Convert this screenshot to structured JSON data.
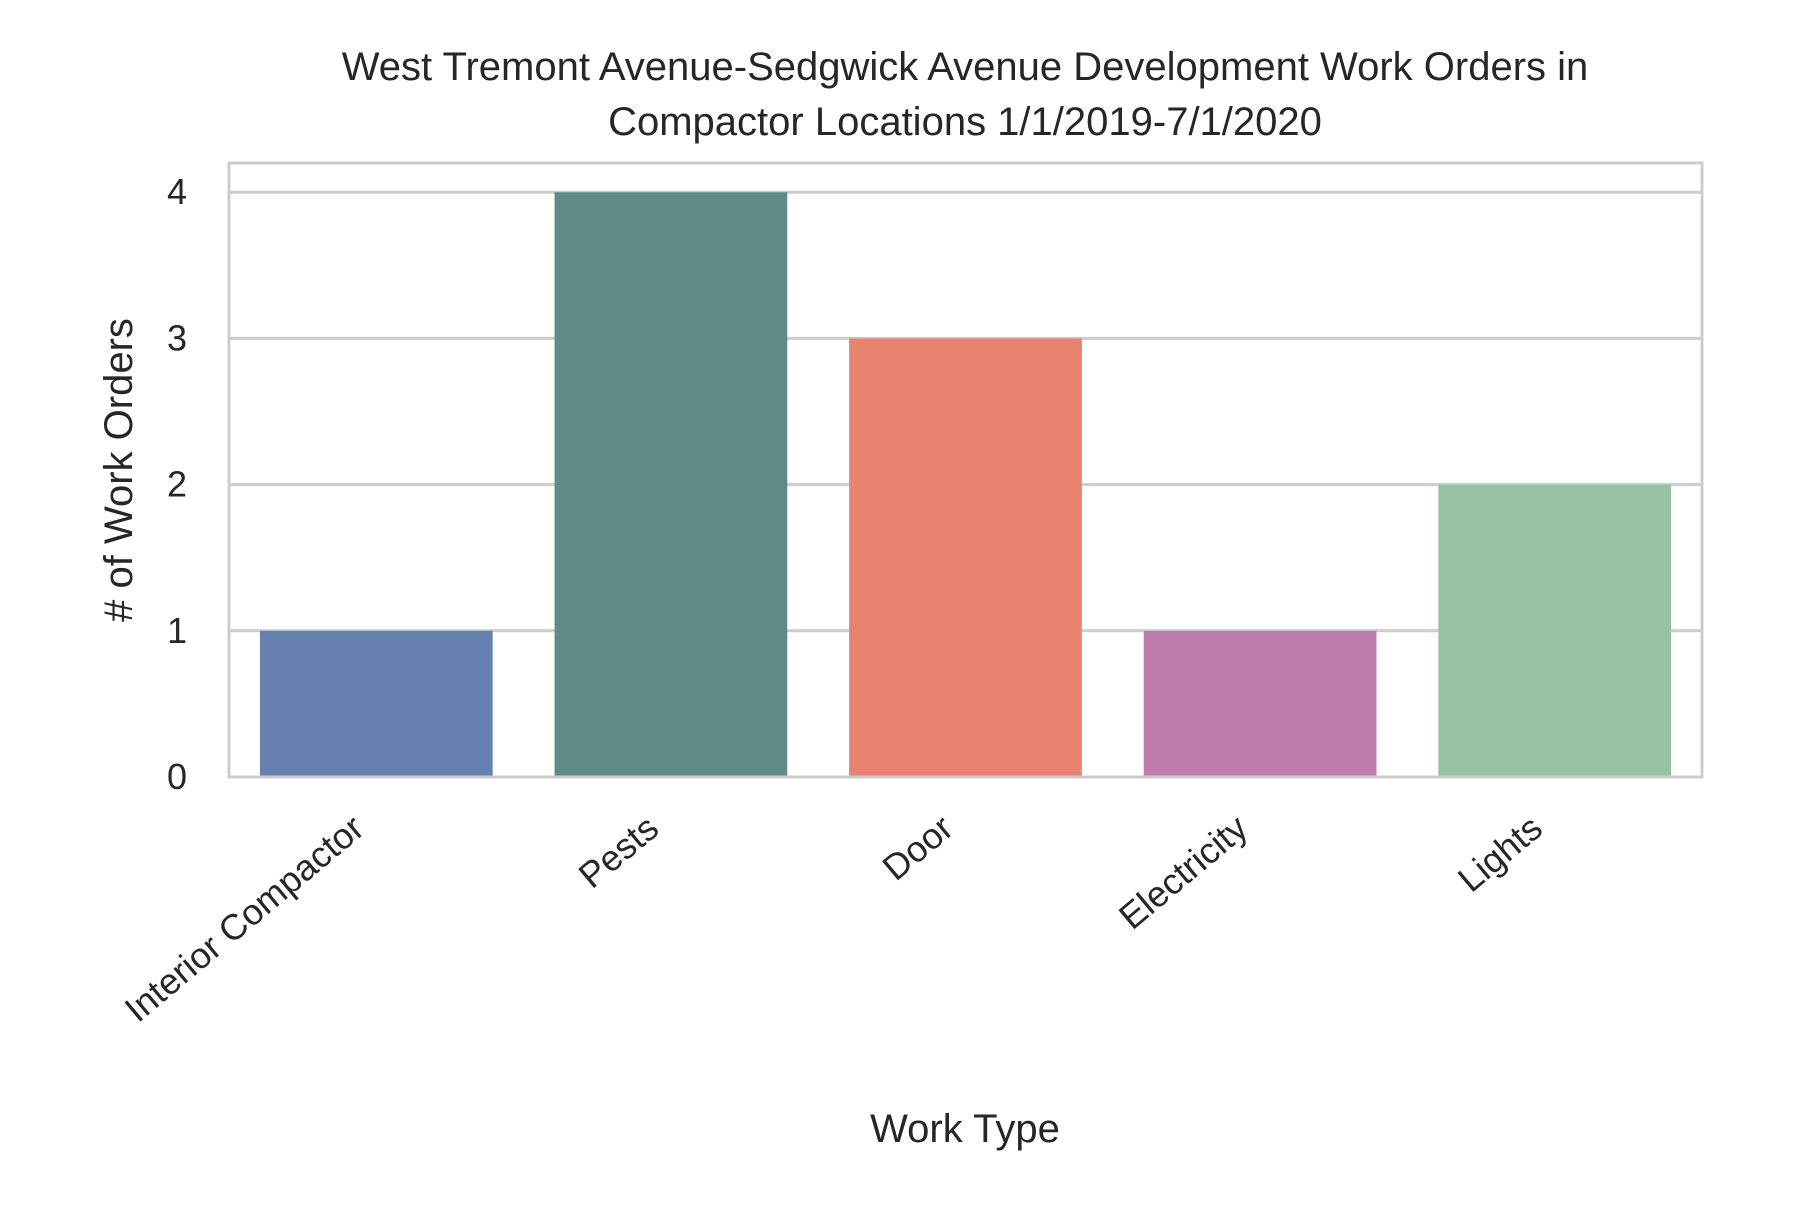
{
  "chart_data": {
    "type": "bar",
    "title_lines": [
      "West Tremont Avenue-Sedgwick Avenue Development Work Orders in",
      "Compactor Locations 1/1/2019-7/1/2020"
    ],
    "xlabel": "Work Type",
    "ylabel": "# of Work Orders",
    "categories": [
      "Interior Compactor",
      "Pests",
      "Door",
      "Electricity",
      "Lights"
    ],
    "values": [
      1,
      4,
      3,
      1,
      2
    ],
    "colors": [
      "#6681b0",
      "#5e8a87",
      "#e8846e",
      "#bd7bae",
      "#96c1a2"
    ],
    "ylim": [
      0,
      4.2
    ],
    "yticks": [
      0,
      1,
      2,
      3,
      4
    ],
    "grid": true,
    "legend": "none"
  }
}
